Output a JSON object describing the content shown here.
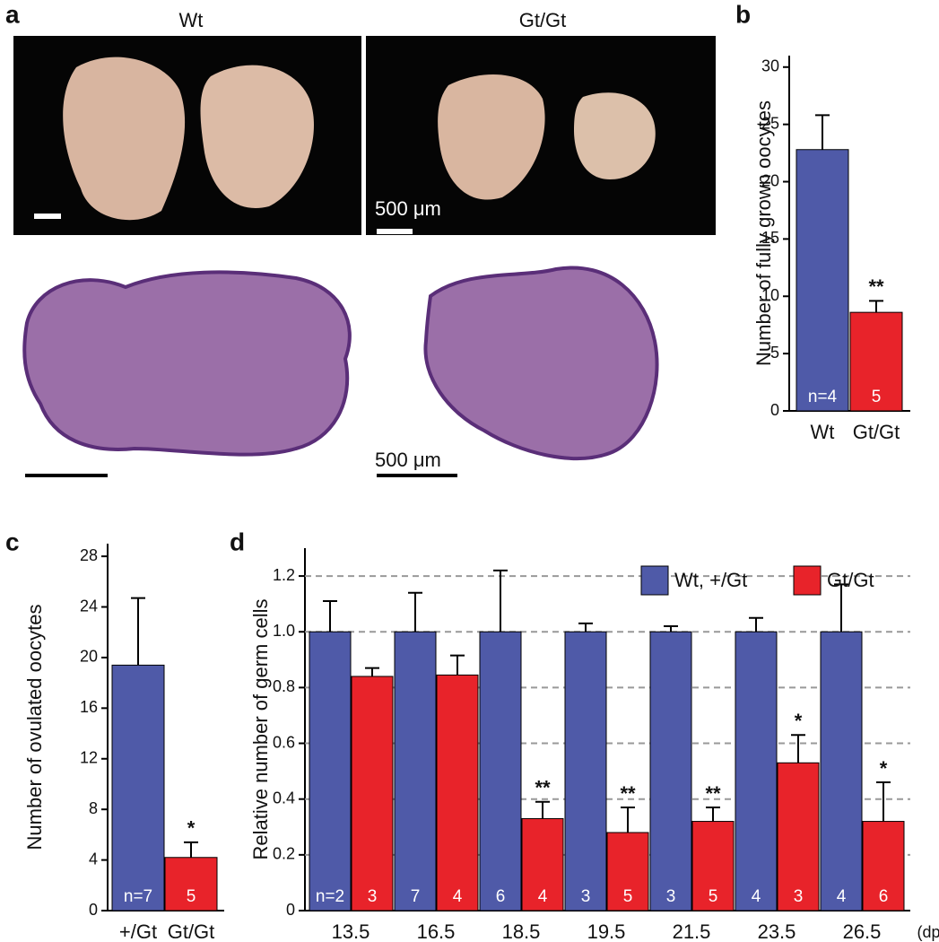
{
  "panel_labels": [
    "a",
    "b",
    "c",
    "d"
  ],
  "panel_a": {
    "columns": [
      "Wt",
      "Gt/Gt"
    ],
    "scale_labels": [
      "500 μm",
      "500 μm"
    ]
  },
  "chart_data": [
    {
      "type": "bar",
      "ylabel": "Number of fully grown oocytes",
      "categories": [
        "Wt",
        "Gt/Gt"
      ],
      "values": [
        22.8,
        8.6
      ],
      "errors": [
        3.0,
        1.0
      ],
      "colors": [
        "#4f5aa8",
        "#e8232a"
      ],
      "n_labels": [
        "n=4",
        "5"
      ],
      "significance": [
        null,
        "**"
      ],
      "ylim": [
        0,
        31
      ],
      "yticks": [
        0,
        5,
        10,
        15,
        20,
        25,
        30
      ]
    },
    {
      "type": "bar",
      "ylabel": "Number of ovulated oocytes",
      "categories": [
        "+/Gt",
        "Gt/Gt"
      ],
      "values": [
        19.4,
        4.2
      ],
      "errors": [
        5.3,
        1.2
      ],
      "colors": [
        "#4f5aa8",
        "#e8232a"
      ],
      "n_labels": [
        "n=7",
        "5"
      ],
      "significance": [
        null,
        "*"
      ],
      "ylim": [
        0,
        29
      ],
      "yticks": [
        0,
        4,
        8,
        12,
        16,
        20,
        24,
        28
      ]
    },
    {
      "type": "grouped_bar",
      "ylabel": "Relative number of germ cells",
      "x_unit": "(dpc)",
      "categories": [
        "13.5",
        "16.5",
        "18.5",
        "19.5",
        "21.5",
        "23.5",
        "26.5"
      ],
      "series": [
        {
          "name": "Wt, +/Gt",
          "color": "#4f5aa8",
          "values": [
            1,
            1,
            1,
            1,
            1,
            1,
            1
          ],
          "errors": [
            0.11,
            0.14,
            0.22,
            0.03,
            0.02,
            0.05,
            0.17
          ],
          "n_labels": [
            "n=2",
            "7",
            "6",
            "3",
            "3",
            "4",
            "4"
          ],
          "significance": [
            null,
            null,
            null,
            null,
            null,
            null,
            null
          ]
        },
        {
          "name": "Gt/Gt",
          "color": "#e8232a",
          "values": [
            0.84,
            0.845,
            0.33,
            0.28,
            0.32,
            0.53,
            0.32
          ],
          "errors": [
            0.03,
            0.07,
            0.06,
            0.09,
            0.05,
            0.1,
            0.14
          ],
          "n_labels": [
            "3",
            "4",
            "4",
            "5",
            "5",
            "3",
            "6"
          ],
          "significance": [
            null,
            null,
            "**",
            "**",
            "**",
            "*",
            "*"
          ]
        }
      ],
      "ylim": [
        0,
        1.3
      ],
      "yticks": [
        0,
        0.2,
        0.4,
        0.6,
        0.8,
        {
          "value": 1,
          "label": "1.0"
        },
        1.2
      ],
      "grid": true,
      "legend": "top-right"
    }
  ]
}
